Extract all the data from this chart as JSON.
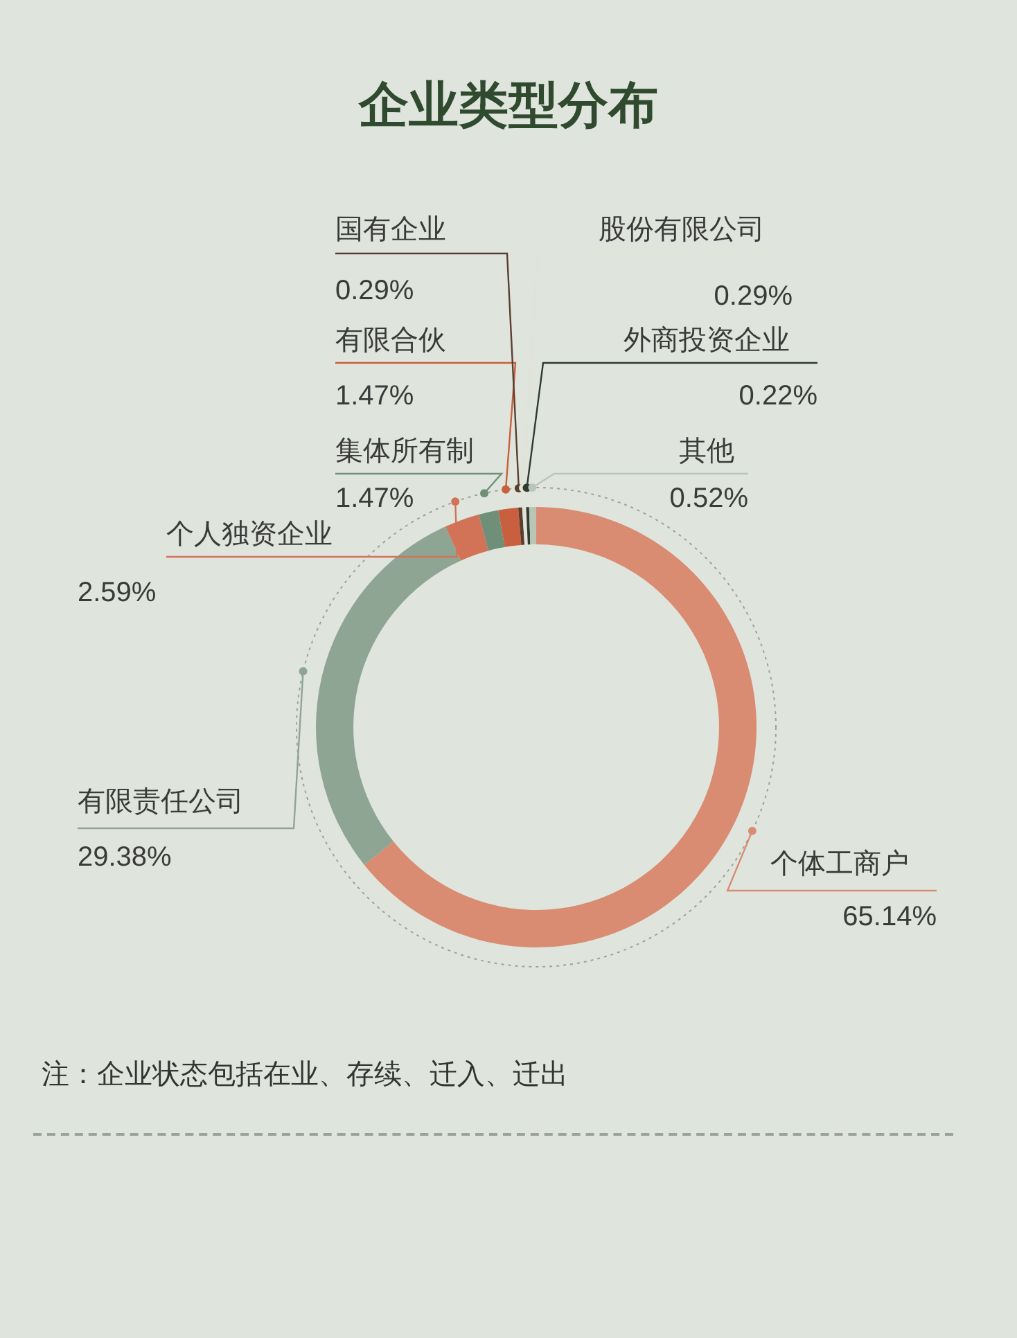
{
  "chart_data": {
    "type": "donut",
    "title": "企业类型分布",
    "categories": [
      "个体工商户",
      "有限责任公司",
      "个人独资企业",
      "集体所有制",
      "有限合伙",
      "国有企业",
      "股份有限公司",
      "外商投资企业",
      "其他"
    ],
    "values": [
      65.14,
      29.38,
      2.59,
      1.47,
      1.47,
      0.29,
      0.29,
      0.22,
      0.52
    ],
    "colors": [
      "#d98c72",
      "#8fa593",
      "#d27357",
      "#6f8f79",
      "#c85f3f",
      "#5a3f30",
      "#e2e2d6",
      "#2f3a30",
      "#b9c6b6"
    ],
    "value_labels": [
      "65.14%",
      "29.38%",
      "2.59%",
      "1.47%",
      "1.47%",
      "0.29%",
      "0.29%",
      "0.22%",
      "0.52%"
    ],
    "annotations": [
      "注：企业状态包括在业、存续、迁入、迁出"
    ]
  }
}
